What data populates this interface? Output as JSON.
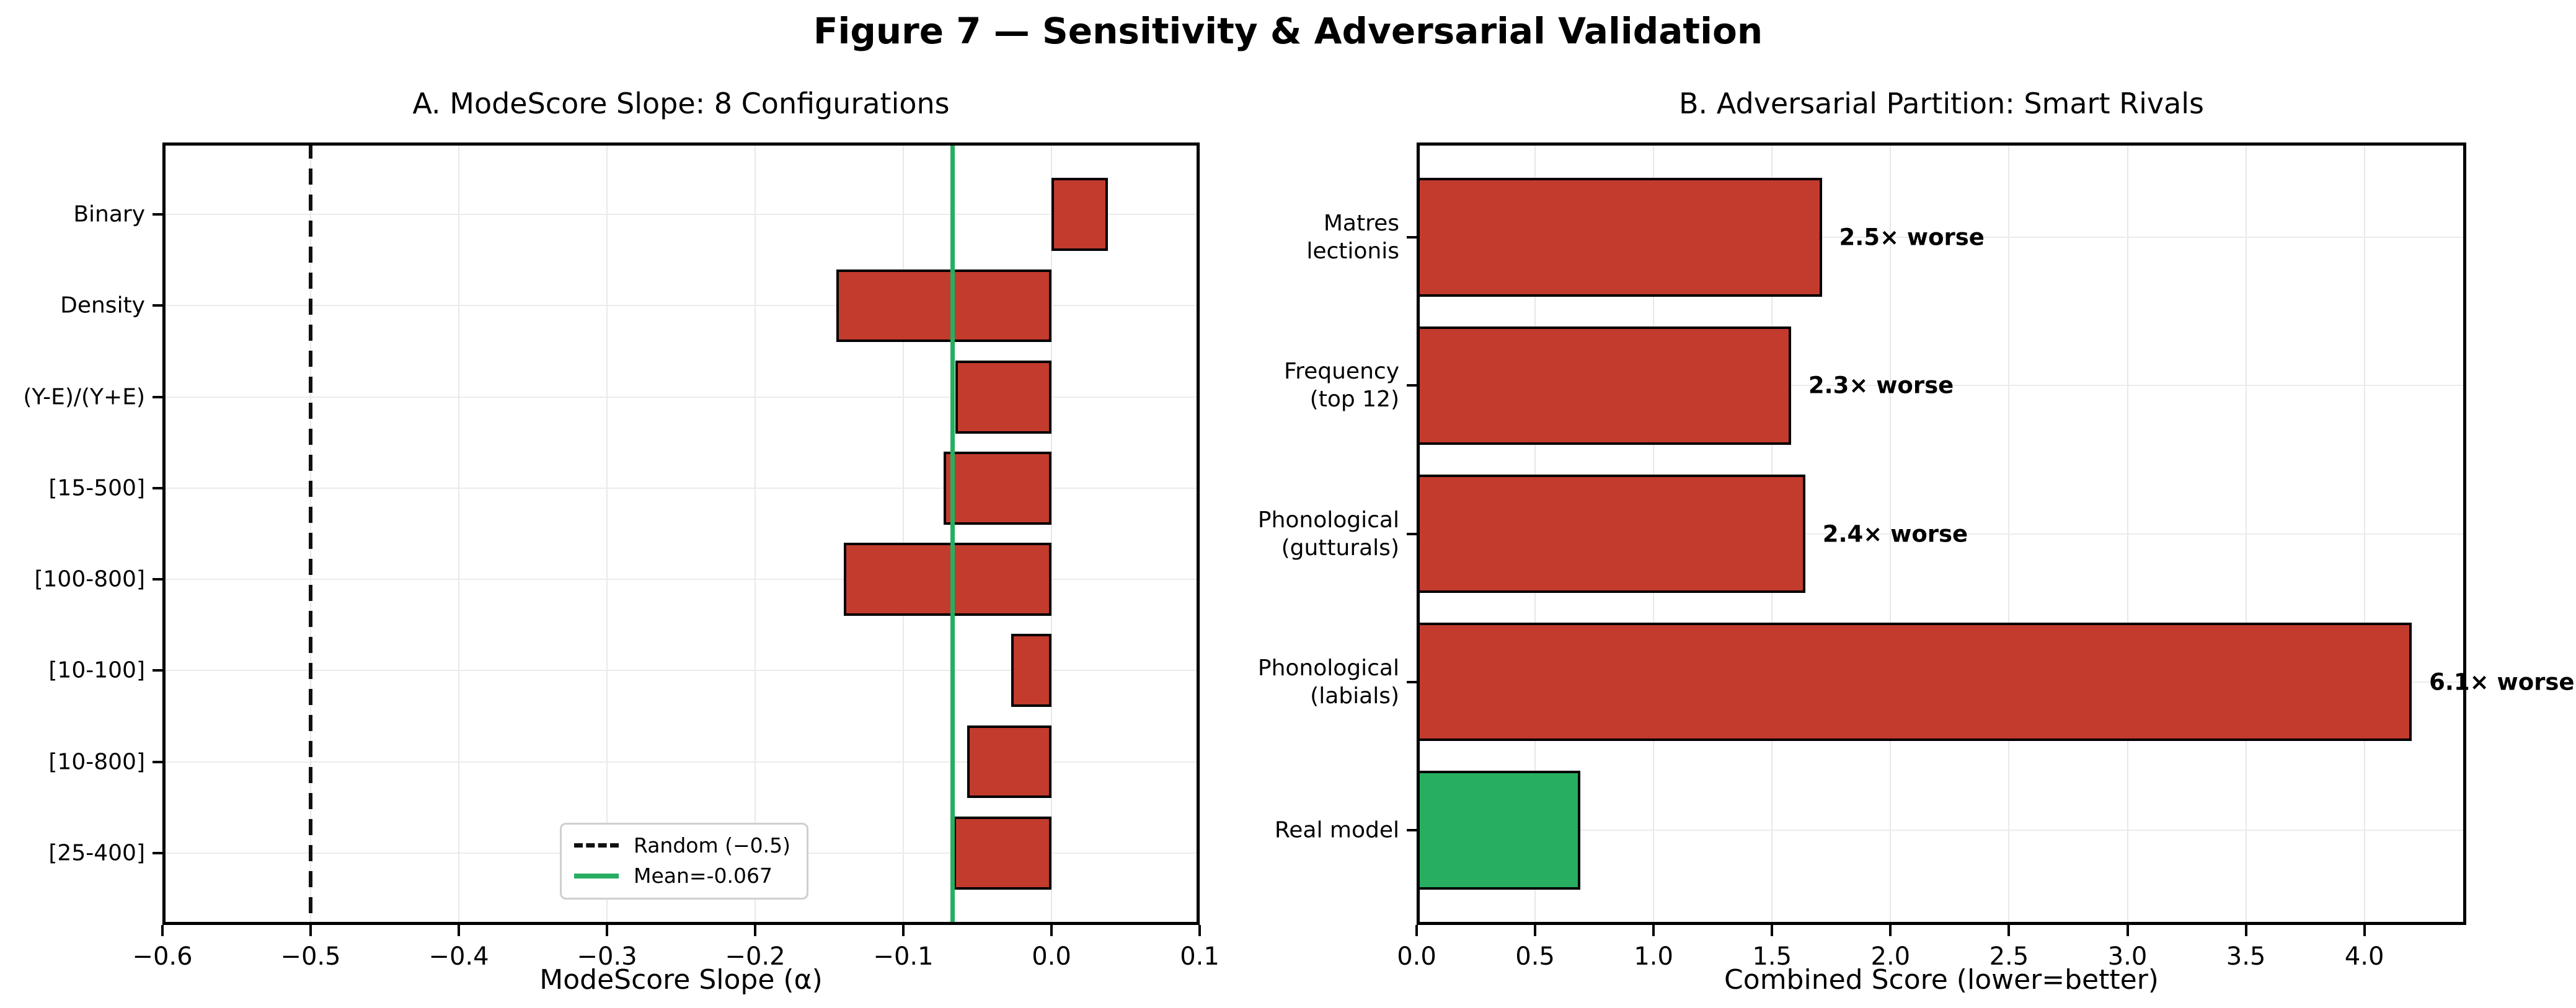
{
  "figure": {
    "title": "Figure 7 — Sensitivity & Adversarial Validation"
  },
  "colors": {
    "bar_red": "#c23b2d",
    "bar_green": "#27ae60",
    "mean_line_green": "#27ae60",
    "random_line_black": "#111111",
    "grid_gray": "#e8e8e8"
  },
  "chart_data": [
    {
      "type": "bar",
      "orientation": "horizontal",
      "title": "A. ModeScore Slope: 8 Configurations",
      "xlabel": "ModeScore Slope (α)",
      "xlim": [
        -0.6,
        0.1
      ],
      "grid": true,
      "xtick_values": [
        -0.6,
        -0.5,
        -0.4,
        -0.3,
        -0.2,
        -0.1,
        0.0,
        0.1
      ],
      "xtick_labels": [
        "−0.6",
        "−0.5",
        "−0.4",
        "−0.3",
        "−0.2",
        "−0.1",
        "0.0",
        "0.1"
      ],
      "categories": [
        "Binary",
        "Density",
        "(Y-E)/(Y+E)",
        "[15-500]",
        "[100-800]",
        "[10-100]",
        "[10-800]",
        "[25-400]"
      ],
      "values": [
        0.038,
        -0.145,
        -0.065,
        -0.073,
        -0.14,
        -0.027,
        -0.057,
        -0.066
      ],
      "bar_color": "#c23b2d",
      "reference_lines": [
        {
          "value": -0.5,
          "style": "dashed",
          "color": "#111111",
          "label": "Random (−0.5)"
        },
        {
          "value": -0.067,
          "style": "solid",
          "color": "#27ae60",
          "label": "Mean=-0.067"
        }
      ],
      "legend_position": "lower center"
    },
    {
      "type": "bar",
      "orientation": "horizontal",
      "title": "B. Adversarial Partition: Smart Rivals",
      "xlabel": "Combined Score (lower=better)",
      "xlim": [
        0,
        4.43
      ],
      "grid": true,
      "xtick_values": [
        0.0,
        0.5,
        1.0,
        1.5,
        2.0,
        2.5,
        3.0,
        3.5,
        4.0
      ],
      "xtick_labels": [
        "0.0",
        "0.5",
        "1.0",
        "1.5",
        "2.0",
        "2.5",
        "3.0",
        "3.5",
        "4.0"
      ],
      "categories": [
        "Matres\nlectionis",
        "Frequency\n(top 12)",
        "Phonological\n(gutturals)",
        "Phonological\n(labials)",
        "Real model"
      ],
      "values": [
        1.71,
        1.58,
        1.64,
        4.2,
        0.69
      ],
      "bar_colors": [
        "#c23b2d",
        "#c23b2d",
        "#c23b2d",
        "#c23b2d",
        "#27ae60"
      ],
      "annotations": [
        "2.5× worse",
        "2.3× worse",
        "2.4× worse",
        "6.1× worse",
        ""
      ]
    }
  ]
}
